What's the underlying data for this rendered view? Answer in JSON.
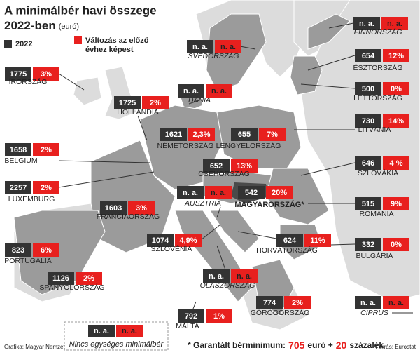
{
  "header": {
    "title_lines": [
      "A minimálbér havi összege",
      "2022-ben"
    ],
    "unit": "(euró)"
  },
  "legend": {
    "value": "2022",
    "change_lines": [
      "Változás az előző",
      "évhez képest"
    ]
  },
  "countries": [
    {
      "name": "ÍRORSZÁG",
      "value": "1775",
      "change": "3%"
    },
    {
      "name": "HOLLANDIA",
      "value": "1725",
      "change": "2%"
    },
    {
      "name": "DÁNIA",
      "value": "n. a.",
      "change": "n. a."
    },
    {
      "name": "SVÉDORSZÁG",
      "value": "n. a.",
      "change": "n. a."
    },
    {
      "name": "FINNORSZÁG",
      "value": "n. a.",
      "change": "n. a."
    },
    {
      "name": "ÉSZTORSZÁG",
      "value": "654",
      "change": "12%"
    },
    {
      "name": "LETTORSZÁG",
      "value": "500",
      "change": "0%"
    },
    {
      "name": "LITVÁNIA",
      "value": "730",
      "change": "14%"
    },
    {
      "name": "LENGYELORSZÁG",
      "value": "655",
      "change": "7%"
    },
    {
      "name": "NÉMETORSZÁG",
      "value": "1621",
      "change": "2,3%"
    },
    {
      "name": "BELGIUM",
      "value": "1658",
      "change": "2%"
    },
    {
      "name": "LUXEMBURG",
      "value": "2257",
      "change": "2%"
    },
    {
      "name": "CSEHORSZÁG",
      "value": "652",
      "change": "13%"
    },
    {
      "name": "SZLOVÁKIA",
      "value": "646",
      "change": "4 %"
    },
    {
      "name": "AUSZTRIA",
      "value": "n. a.",
      "change": "n. a."
    },
    {
      "name": "MAGYARORSZÁG*",
      "value": "542",
      "change": "20%"
    },
    {
      "name": "FRANCIAORSZÁG",
      "value": "1603",
      "change": "3%"
    },
    {
      "name": "ROMÁNIA",
      "value": "515",
      "change": "9%"
    },
    {
      "name": "SZLOVÉNIA",
      "value": "1074",
      "change": "4,9%"
    },
    {
      "name": "HORVÁTORSZÁG",
      "value": "624",
      "change": "11%"
    },
    {
      "name": "BULGÁRIA",
      "value": "332",
      "change": "0%"
    },
    {
      "name": "PORTUGÁLIA",
      "value": "823",
      "change": "6%"
    },
    {
      "name": "SPANYOLORSZÁG",
      "value": "1126",
      "change": "2%"
    },
    {
      "name": "OLASZORSZÁG",
      "value": "n. a.",
      "change": "n. a."
    },
    {
      "name": "GÖRÖGORSZÁG",
      "value": "774",
      "change": "2%"
    },
    {
      "name": "CIPRUS",
      "value": "n. a.",
      "change": "n. a."
    },
    {
      "name": "MÁLTA",
      "value": "792",
      "change": "1%"
    }
  ],
  "na_legend": {
    "value": "n. a.",
    "change": "n. a.",
    "text": "Nincs egységes minimálbér"
  },
  "footer": {
    "credit": "Grafika: Magyar Nemzet",
    "note_start": "* Garantált bérminimum:",
    "note_amount": "705",
    "note_mid": "euró +",
    "note_percent": "20",
    "note_end": "százalék",
    "source": "Forrás: Eurostat"
  }
}
